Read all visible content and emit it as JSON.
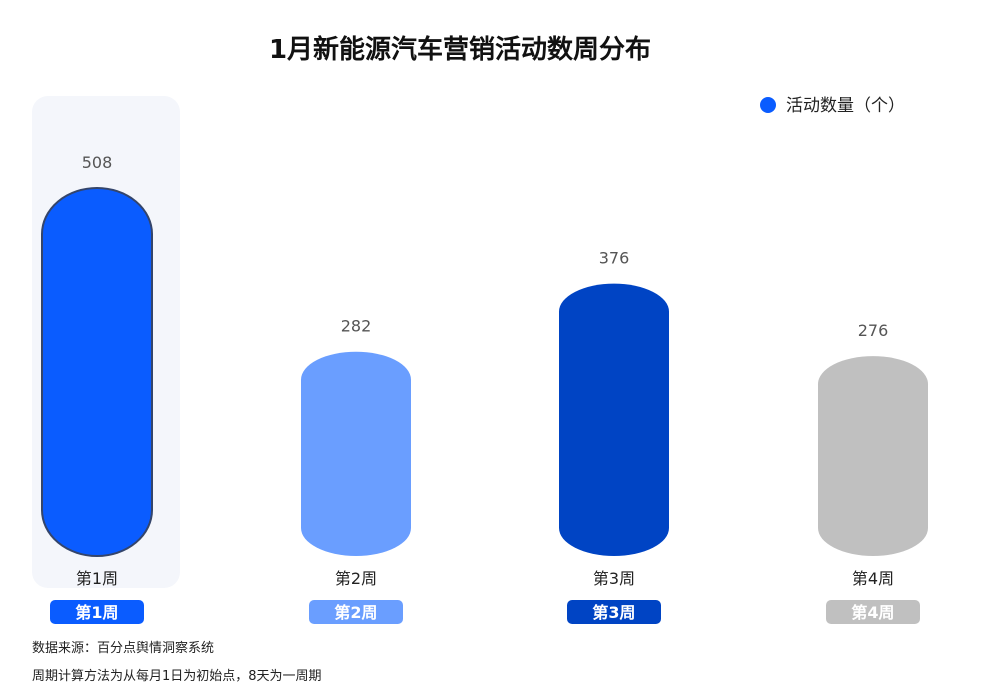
{
  "chart_data": {
    "type": "bar",
    "title": "1月新能源汽车营销活动数周分布",
    "xlabel": "",
    "ylabel": "",
    "ylim": [
      0,
      508
    ],
    "grid": false,
    "legend_position": "top-right",
    "categories": [
      "第1周",
      "第2周",
      "第3周",
      "第4周"
    ],
    "series": [
      {
        "name": "活动数量（个）",
        "values": [
          508,
          282,
          376,
          276
        ]
      }
    ],
    "bar_colors": [
      "#0a5cff",
      "#6a9eff",
      "#0044c4",
      "#c0c0c0"
    ],
    "legend_color": "#0a5cff",
    "highlight_index": 0,
    "highlight_background": "#f4f6fb",
    "highlight_border": "#34456b"
  },
  "footnotes": {
    "source": "数据来源：百分点舆情洞察系统",
    "method": "周期计算方法为从每月1日为初始点，8天为一周期"
  }
}
